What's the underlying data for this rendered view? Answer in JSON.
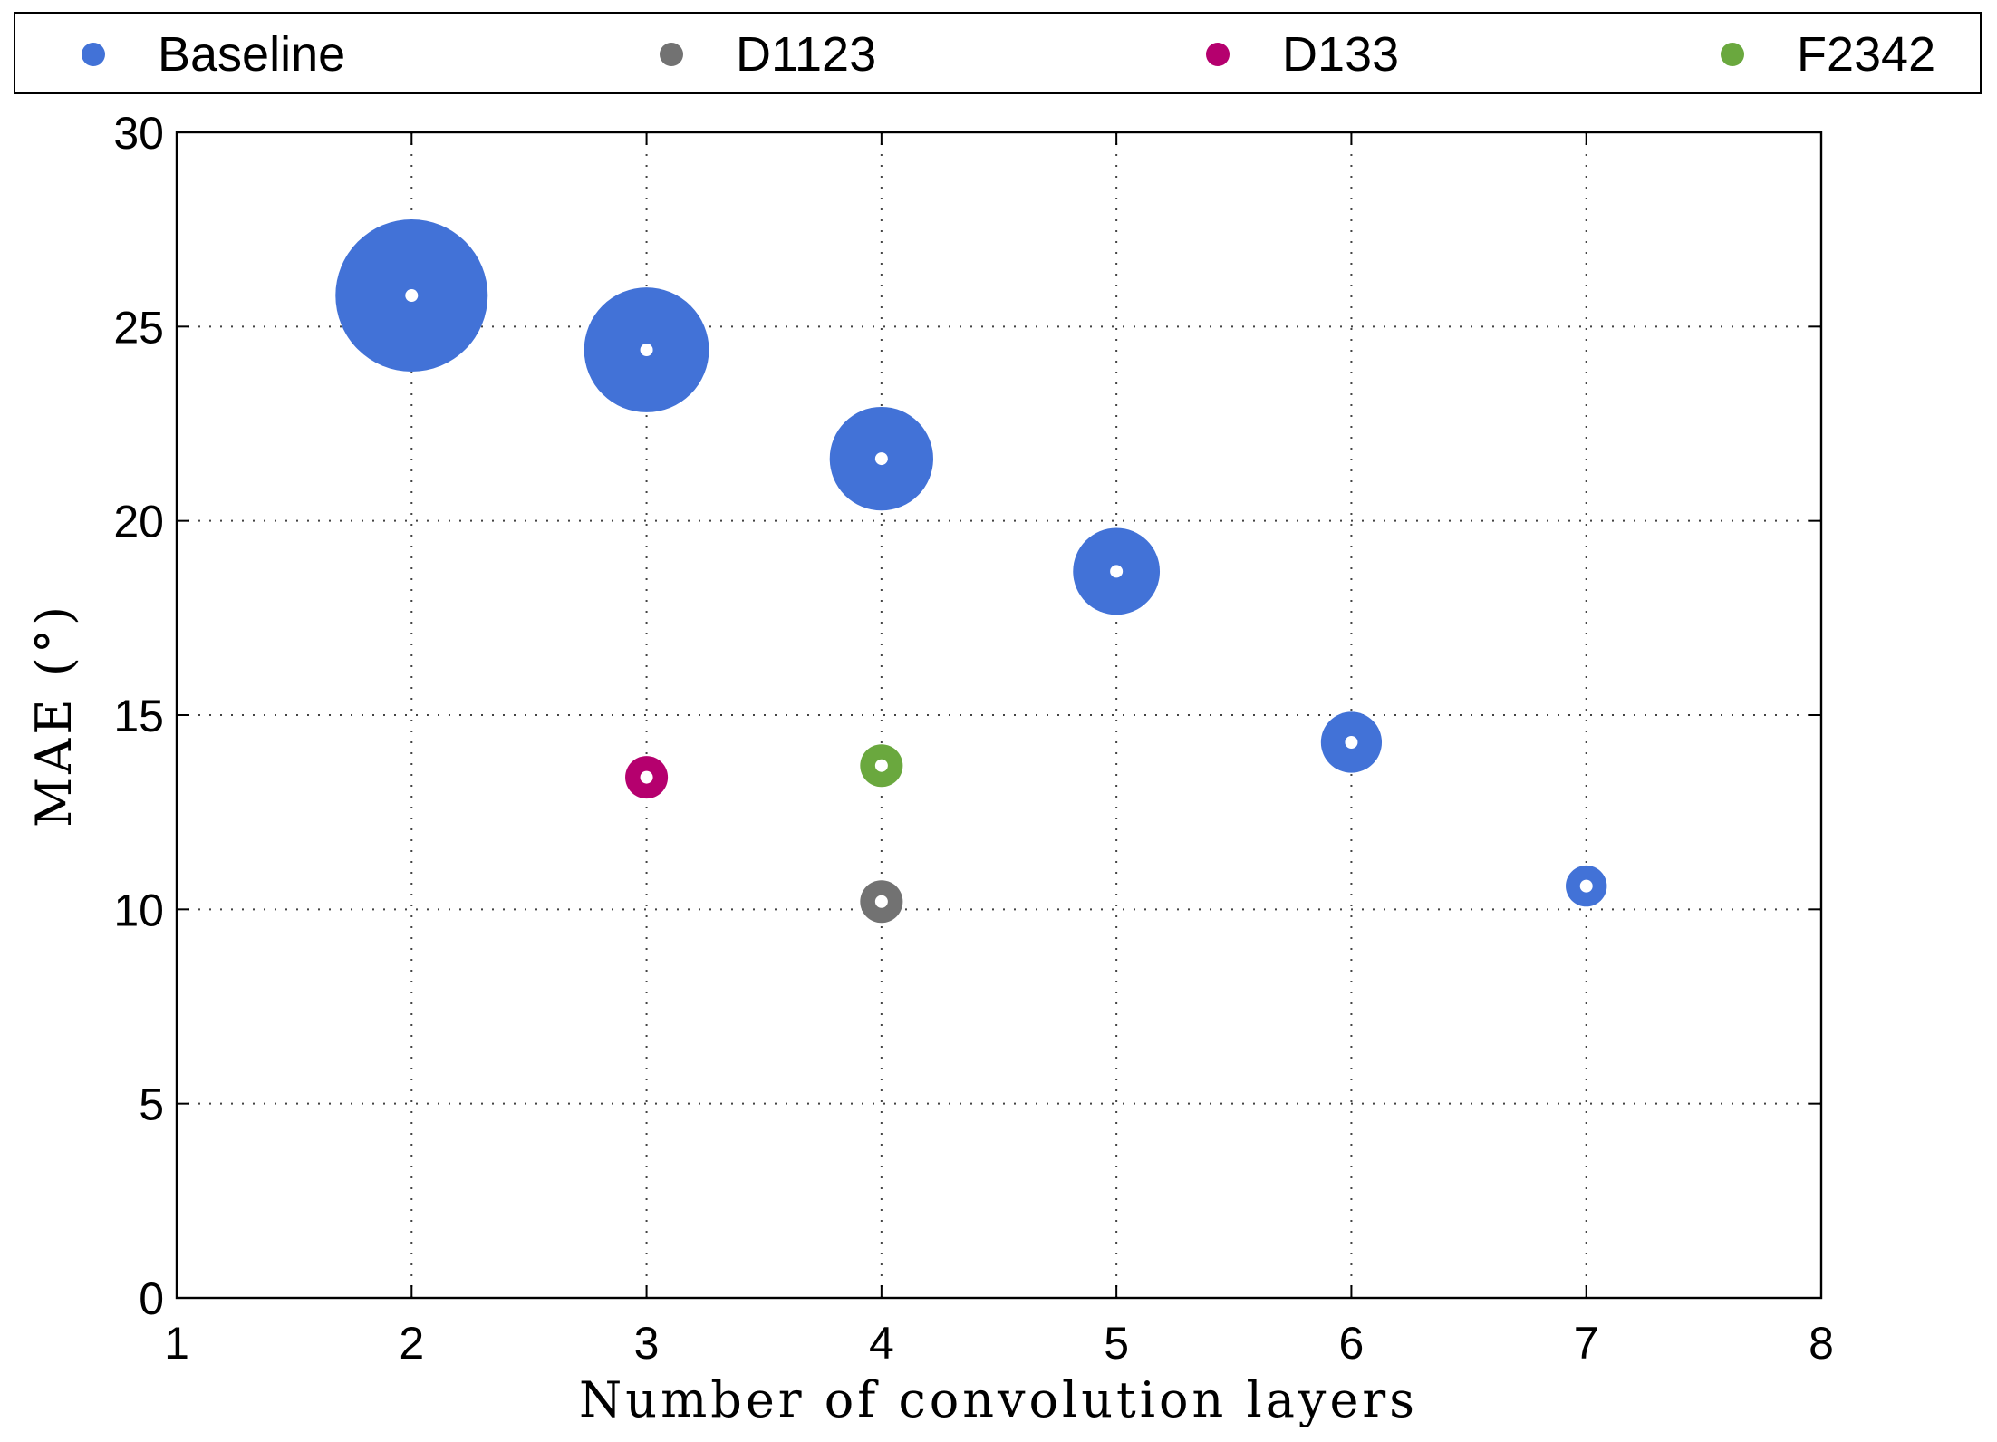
{
  "chart_data": {
    "type": "scatter",
    "xlabel": "Number of convolution layers",
    "ylabel": "MAE (°)",
    "xlim": [
      1,
      8
    ],
    "ylim": [
      0,
      30
    ],
    "xticks": [
      "1",
      "2",
      "3",
      "4",
      "5",
      "6",
      "7",
      "8"
    ],
    "yticks": [
      "0",
      "5",
      "10",
      "15",
      "20",
      "25",
      "30"
    ],
    "grid": true,
    "legend_position": "top",
    "series": [
      {
        "name": "Baseline",
        "color": "#4272d7",
        "points": [
          {
            "x": 2,
            "y": 25.8,
            "size": 1.0
          },
          {
            "x": 3,
            "y": 24.4,
            "size": 0.82
          },
          {
            "x": 4,
            "y": 21.6,
            "size": 0.68
          },
          {
            "x": 5,
            "y": 18.7,
            "size": 0.57
          },
          {
            "x": 6,
            "y": 14.3,
            "size": 0.4
          },
          {
            "x": 7,
            "y": 10.6,
            "size": 0.27
          }
        ]
      },
      {
        "name": "D1123",
        "color": "#727272",
        "points": [
          {
            "x": 4,
            "y": 10.2,
            "size": 0.28
          }
        ]
      },
      {
        "name": "D133",
        "color": "#b5006e",
        "points": [
          {
            "x": 3,
            "y": 13.4,
            "size": 0.28
          }
        ]
      },
      {
        "name": "F2342",
        "color": "#6aa83e",
        "points": [
          {
            "x": 4,
            "y": 13.7,
            "size": 0.28
          }
        ]
      }
    ]
  }
}
